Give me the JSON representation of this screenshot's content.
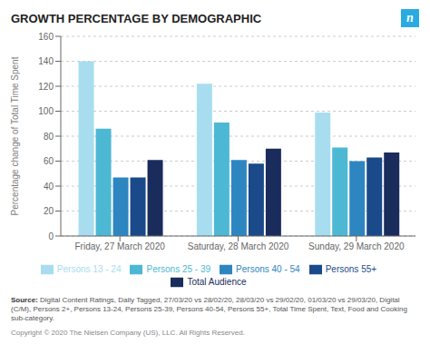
{
  "chart_data": {
    "type": "bar",
    "title": "GROWTH PERCENTAGE BY DEMOGRAPHIC",
    "ylabel": "Percentage change of Total Time Spent",
    "categories": [
      "Friday, 27 March 2020",
      "Saturday, 28 March 2020",
      "Sunday, 29 March 2020"
    ],
    "series": [
      {
        "name": "Persons 13 - 24",
        "color": "#a8ddf0",
        "values": [
          140,
          122,
          99
        ]
      },
      {
        "name": "Persons 25 - 39",
        "color": "#4db8d4",
        "values": [
          86,
          91,
          71
        ]
      },
      {
        "name": "Persons 40 - 54",
        "color": "#2e86c1",
        "values": [
          47,
          61,
          60
        ]
      },
      {
        "name": "Persons 55+",
        "color": "#1a4a8a",
        "values": [
          47,
          58,
          63
        ]
      },
      {
        "name": "Total Audience",
        "color": "#1a2c5c",
        "values": [
          61,
          70,
          67
        ]
      }
    ],
    "ylim": [
      0,
      160
    ],
    "yticks": [
      0,
      20,
      40,
      60,
      80,
      100,
      120,
      140,
      160
    ],
    "grid": true,
    "annotations": [
      "Source:",
      "Digital Content Ratings, Daily Tagged, 27/03/20 vs 28/02/20, 28/03/20 vs 29/02/20, 01/03/20 vs 29/03/20, Digital (C/M), Persons 2+, Persons 13-24, Persons 25-39, Persons 40-54, Persons 55+, Total Time Spent, Text, Food and Cooking sub-category.",
      "Copyright © 2020 The Nielsen Company (US), LLC. All Rights Reserved.",
      "n"
    ]
  }
}
